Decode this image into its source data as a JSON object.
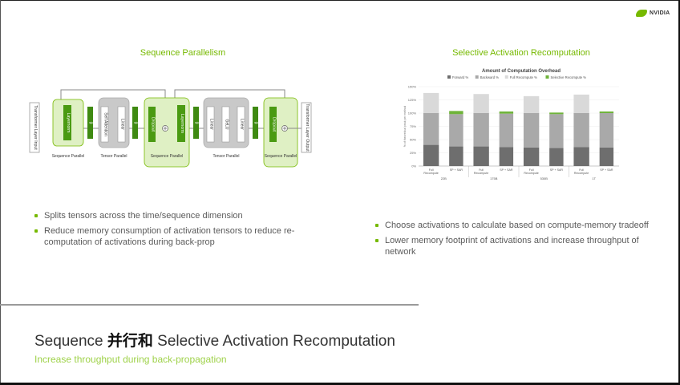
{
  "brand": {
    "logo_text": "NVIDIA"
  },
  "left": {
    "title": "Sequence Parallelism",
    "diagram": {
      "input_label": "Transformer Layer Input",
      "output_label": "Transformer Layer Output",
      "layernorm": "Layernorm",
      "self_attention": "Self Attention",
      "linear": "Linear",
      "dropout": "Dropout",
      "gelu": "GeLU",
      "sequence_parallel": "Sequence Parallel",
      "tensor_parallel": "Tensor Parallel",
      "g": "g",
      "g_bar": "ḡ"
    },
    "bullets": [
      "Splits tensors across the time/sequence dimension",
      "Reduce memory consumption of activation tensors to reduce re-computation of activations during back-prop"
    ]
  },
  "right": {
    "title": "Selective Activation Recomputation",
    "bullets": [
      "Choose activations to calculate based on compute-memory tradeoff",
      "Lower memory footprint of activations and increase throughput of network"
    ]
  },
  "footer": {
    "title_pre": "Sequence ",
    "title_cjk": "并行和",
    "title_post": " Selective Activation Recomputation",
    "subtitle": "Increase throughput during back-propagation"
  },
  "colors": {
    "accent": "#76b900"
  },
  "chart_data": {
    "type": "bar",
    "title": "Amount of Computation Overhead",
    "ylabel": "% of theoretical peak per method",
    "ylim": [
      0,
      150
    ],
    "yticks": [
      "0%",
      "25%",
      "50%",
      "75%",
      "100%",
      "125%",
      "150%"
    ],
    "groups": [
      "22B",
      "175B",
      "530B",
      "1T"
    ],
    "categories": [
      "Full Recompute",
      "SP + SAR",
      "Full Recompute",
      "SP + SAR",
      "Full Recompute",
      "SP + SAR",
      "Full Recompute",
      "SP + SAR"
    ],
    "series": [
      {
        "name": "Forward %",
        "color": "#6e6e6e",
        "values": [
          40,
          37,
          37,
          36,
          35,
          34,
          36,
          35
        ]
      },
      {
        "name": "Backward %",
        "color": "#a9a9a9",
        "values": [
          60,
          61,
          63,
          63,
          65,
          64,
          64,
          65
        ]
      },
      {
        "name": "Full Recompute %",
        "color": "#d9d9d9",
        "values": [
          38,
          0,
          36,
          0,
          32,
          0,
          35,
          0
        ]
      },
      {
        "name": "Selective Recompute %",
        "color": "#6fb43a",
        "values": [
          0,
          6,
          0,
          4,
          0,
          3,
          0,
          3
        ]
      }
    ],
    "legend": "top"
  }
}
